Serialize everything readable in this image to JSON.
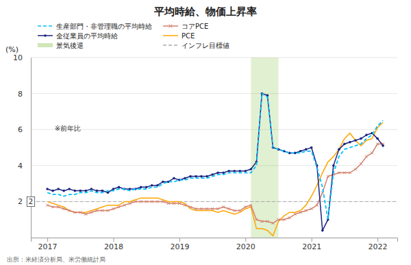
{
  "chart_data": {
    "type": "line",
    "title": "平均時給、物価上昇率",
    "ylabel": "(%)",
    "note": "※前年比",
    "source": "出所：米経済分析局、米労働統計局",
    "xlim": [
      2016.75,
      2022.3
    ],
    "xticks": [
      2017,
      2018,
      2019,
      2020,
      2021,
      2022
    ],
    "ylim": [
      0,
      10
    ],
    "yticks": [
      2,
      4,
      6,
      8,
      10
    ],
    "grid": true,
    "x": [
      2017.0,
      2017.083,
      2017.167,
      2017.25,
      2017.333,
      2017.417,
      2017.5,
      2017.583,
      2017.667,
      2017.75,
      2017.833,
      2017.917,
      2018.0,
      2018.083,
      2018.167,
      2018.25,
      2018.333,
      2018.417,
      2018.5,
      2018.583,
      2018.667,
      2018.75,
      2018.833,
      2018.917,
      2019.0,
      2019.083,
      2019.167,
      2019.25,
      2019.333,
      2019.417,
      2019.5,
      2019.583,
      2019.667,
      2019.75,
      2019.833,
      2019.917,
      2020.0,
      2020.083,
      2020.167,
      2020.25,
      2020.333,
      2020.417,
      2020.5,
      2020.583,
      2020.667,
      2020.75,
      2020.833,
      2020.917,
      2021.0,
      2021.083,
      2021.167,
      2021.25,
      2021.333,
      2021.417,
      2021.5,
      2021.583,
      2021.667,
      2021.75,
      2021.833,
      2021.917,
      2022.0,
      2022.083
    ],
    "series": [
      {
        "name": "生産部門・非管理職の平均時給",
        "color": "#00BFFF",
        "line_style": "dashed",
        "marker": "none",
        "values": [
          2.5,
          2.4,
          2.4,
          2.3,
          2.4,
          2.4,
          2.5,
          2.5,
          2.6,
          2.5,
          2.5,
          2.6,
          2.6,
          2.7,
          2.7,
          2.6,
          2.7,
          2.7,
          2.7,
          2.8,
          2.8,
          3.0,
          3.1,
          3.1,
          3.2,
          3.2,
          3.3,
          3.3,
          3.3,
          3.3,
          3.4,
          3.5,
          3.5,
          3.6,
          3.6,
          3.6,
          3.6,
          3.6,
          4.0,
          8.0,
          7.8,
          5.0,
          4.9,
          4.8,
          4.7,
          4.7,
          4.7,
          4.8,
          4.8,
          3.9,
          2.8,
          1.0,
          3.6,
          4.5,
          4.9,
          5.0,
          5.1,
          5.2,
          5.5,
          5.7,
          6.2,
          6.5
        ]
      },
      {
        "name": "全従業員の平均時給",
        "color": "#1a237e",
        "line_style": "solid",
        "marker": "o",
        "values": [
          2.7,
          2.6,
          2.7,
          2.6,
          2.7,
          2.6,
          2.6,
          2.6,
          2.7,
          2.6,
          2.6,
          2.5,
          2.7,
          2.8,
          2.7,
          2.7,
          2.7,
          2.8,
          2.8,
          2.9,
          2.9,
          3.1,
          3.1,
          3.3,
          3.2,
          3.3,
          3.4,
          3.4,
          3.4,
          3.4,
          3.5,
          3.6,
          3.6,
          3.7,
          3.7,
          3.7,
          3.7,
          3.8,
          4.2,
          8.0,
          7.9,
          5.0,
          4.9,
          4.8,
          4.7,
          4.7,
          4.8,
          4.9,
          5.0,
          4.0,
          0.4,
          1.0,
          4.0,
          4.9,
          5.2,
          5.3,
          5.4,
          5.5,
          5.7,
          5.8,
          5.5,
          5.1
        ]
      },
      {
        "name": "コアPCE",
        "color": "#d2806a",
        "line_style": "solid",
        "marker": "x",
        "values": [
          1.8,
          1.7,
          1.7,
          1.6,
          1.5,
          1.4,
          1.4,
          1.3,
          1.4,
          1.5,
          1.5,
          1.5,
          1.6,
          1.7,
          1.8,
          1.9,
          2.0,
          2.0,
          2.0,
          2.0,
          2.0,
          2.0,
          1.9,
          1.9,
          1.9,
          1.8,
          1.7,
          1.6,
          1.6,
          1.6,
          1.6,
          1.6,
          1.7,
          1.6,
          1.5,
          1.5,
          1.7,
          1.8,
          1.0,
          0.9,
          0.9,
          0.8,
          1.0,
          1.0,
          1.1,
          1.3,
          1.4,
          1.5,
          1.6,
          1.8,
          2.5,
          3.4,
          3.5,
          3.6,
          3.6,
          3.6,
          3.8,
          4.1,
          4.5,
          4.7,
          5.2,
          5.2
        ]
      },
      {
        "name": "PCE",
        "color": "#FFA500",
        "line_style": "solid",
        "marker": "none",
        "values": [
          2.0,
          1.9,
          1.8,
          1.7,
          1.5,
          1.4,
          1.4,
          1.4,
          1.5,
          1.6,
          1.7,
          1.8,
          1.8,
          1.8,
          2.0,
          2.0,
          2.1,
          2.2,
          2.2,
          2.2,
          2.2,
          2.1,
          2.0,
          2.0,
          2.0,
          1.9,
          1.6,
          1.5,
          1.5,
          1.5,
          1.5,
          1.4,
          1.5,
          1.4,
          1.3,
          1.4,
          1.6,
          1.7,
          0.5,
          0.5,
          0.4,
          0.1,
          0.9,
          1.2,
          1.4,
          1.4,
          1.5,
          1.8,
          2.3,
          2.9,
          3.6,
          4.2,
          4.5,
          4.9,
          5.5,
          5.8,
          5.4,
          5.1,
          5.4,
          5.5,
          6.1,
          6.4
        ]
      }
    ],
    "shaded_regions": [
      {
        "name": "景気後退",
        "start": 2020.083,
        "end": 2020.5,
        "color": "#8bc34a"
      }
    ],
    "reference_lines": [
      {
        "name": "インフレ目標値",
        "value": 2.0,
        "color": "#aaaaaa",
        "line_style": "dashed"
      }
    ]
  }
}
